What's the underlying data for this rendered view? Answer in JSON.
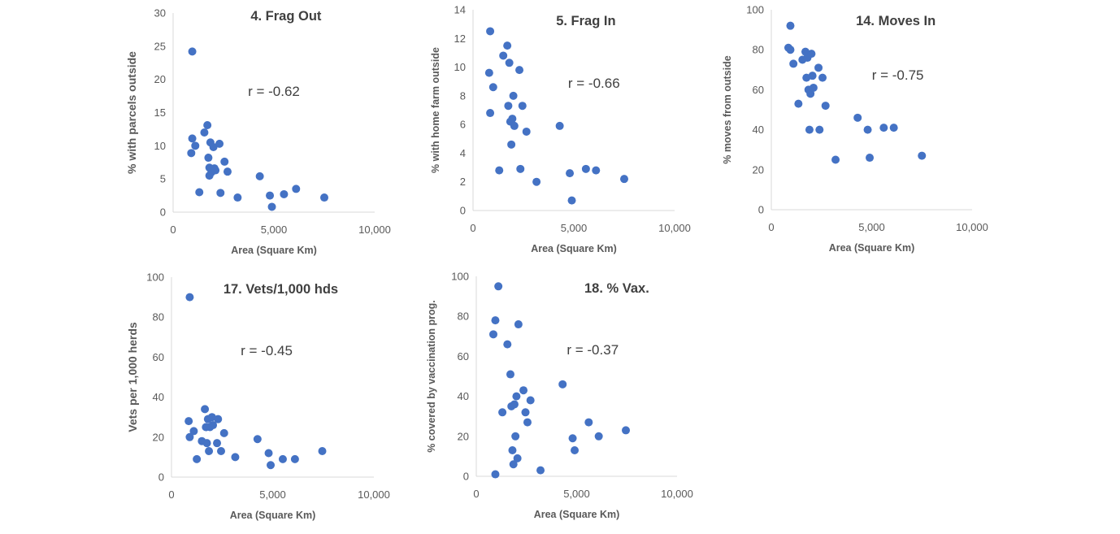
{
  "colors": {
    "point": "#4472c4",
    "axis": "#d9d9d9",
    "text": "#595959",
    "title": "#404040"
  },
  "chart_data": [
    {
      "type": "scatter",
      "title": "4. Frag Out",
      "xlabel": "Area (Square Km)",
      "ylabel": "% with parcels outside",
      "annotation": "r = -0.62",
      "xlim": [
        0,
        10000
      ],
      "ylim": [
        0,
        30
      ],
      "xticks": [
        "0",
        "5,000",
        "10,000"
      ],
      "yticks": [
        "0",
        "5",
        "10",
        "15",
        "20",
        "25",
        "30"
      ],
      "x": [
        950,
        900,
        950,
        1100,
        1300,
        1550,
        1700,
        1750,
        1800,
        1800,
        1850,
        1900,
        2000,
        2050,
        2100,
        2300,
        2350,
        2550,
        2700,
        3200,
        4300,
        4800,
        4900,
        5500,
        6100,
        7500
      ],
      "y": [
        24.2,
        8.9,
        11.1,
        10.0,
        3.0,
        12.0,
        13.1,
        8.2,
        6.7,
        5.5,
        10.5,
        6.0,
        9.8,
        6.6,
        6.3,
        10.3,
        2.9,
        7.6,
        6.1,
        2.2,
        5.4,
        2.5,
        0.8,
        2.7,
        3.5,
        2.2
      ]
    },
    {
      "type": "scatter",
      "title": "5. Frag In",
      "xlabel": "Area (Square Km)",
      "ylabel": "% with home farm outside",
      "annotation": "r = -0.66",
      "xlim": [
        0,
        10000
      ],
      "ylim": [
        0,
        14
      ],
      "xticks": [
        "0",
        "5,000",
        "10,000"
      ],
      "yticks": [
        "0",
        "2",
        "4",
        "6",
        "8",
        "10",
        "12",
        "14"
      ],
      "x": [
        850,
        800,
        850,
        1000,
        1300,
        1500,
        1700,
        1750,
        1800,
        1850,
        1900,
        1950,
        2000,
        2050,
        2300,
        2350,
        2450,
        2650,
        3150,
        4300,
        4800,
        4900,
        5600,
        6100,
        7500
      ],
      "y": [
        12.5,
        9.6,
        6.8,
        8.6,
        2.8,
        10.8,
        11.5,
        7.3,
        10.3,
        6.2,
        4.6,
        6.4,
        8.0,
        5.9,
        9.8,
        2.9,
        7.3,
        5.5,
        2.0,
        5.9,
        2.6,
        0.7,
        2.9,
        2.8,
        2.2
      ]
    },
    {
      "type": "scatter",
      "title": "14. Moves In",
      "xlabel": "Area (Square Km)",
      "ylabel": "% moves from outside",
      "annotation": "r = -0.75",
      "xlim": [
        0,
        10000
      ],
      "ylim": [
        0,
        100
      ],
      "xticks": [
        "0",
        "5,000",
        "10,000"
      ],
      "yticks": [
        "0",
        "20",
        "40",
        "60",
        "80",
        "100"
      ],
      "x": [
        950,
        850,
        950,
        1100,
        1350,
        1550,
        1700,
        1750,
        1800,
        1850,
        1900,
        1950,
        2000,
        2050,
        2100,
        2350,
        2400,
        2550,
        2700,
        3200,
        4300,
        4800,
        4900,
        5600,
        6100,
        7500
      ],
      "y": [
        92,
        81,
        80,
        73,
        53,
        75,
        79,
        66,
        76,
        60,
        40,
        58,
        78,
        67,
        61,
        71,
        40,
        66,
        52,
        25,
        46,
        40,
        26,
        41,
        41,
        27
      ]
    },
    {
      "type": "scatter",
      "title": "17. Vets/1,000 hds",
      "xlabel": "Area (Square Km)",
      "ylabel": "Vets per 1,000 herds",
      "annotation": "r = -0.45",
      "xlim": [
        0,
        10000
      ],
      "ylim": [
        0,
        100
      ],
      "xticks": [
        "0",
        "5,000",
        "10,000"
      ],
      "yticks": [
        "0",
        "20",
        "40",
        "60",
        "80",
        "100"
      ],
      "x": [
        900,
        850,
        900,
        1100,
        1250,
        1500,
        1650,
        1700,
        1750,
        1800,
        1850,
        1900,
        2000,
        2050,
        2250,
        2300,
        2450,
        2600,
        3150,
        4250,
        4800,
        4900,
        5500,
        6100,
        7450
      ],
      "y": [
        90,
        28,
        20,
        23,
        9,
        18,
        34,
        25,
        17,
        29,
        13,
        25,
        30,
        26,
        17,
        29,
        13,
        22,
        10,
        19,
        12,
        6,
        9,
        9,
        13
      ]
    },
    {
      "type": "scatter",
      "title": "18. % Vax.",
      "xlabel": "Area (Square Km)",
      "ylabel": "% covered by vaccination prog.",
      "annotation": "r = -0.37",
      "xlim": [
        0,
        10000
      ],
      "ylim": [
        0,
        100
      ],
      "xticks": [
        "0",
        "5,000",
        "10,000"
      ],
      "yticks": [
        "0",
        "20",
        "40",
        "60",
        "80",
        "100"
      ],
      "x": [
        1100,
        950,
        850,
        950,
        1300,
        1550,
        1700,
        1750,
        1800,
        1850,
        1900,
        1950,
        2000,
        2050,
        2100,
        2350,
        2450,
        2550,
        2700,
        3200,
        4300,
        4800,
        4900,
        5600,
        6100,
        7450
      ],
      "y": [
        95,
        78,
        71,
        1,
        32,
        66,
        51,
        35,
        13,
        6,
        36,
        20,
        40,
        9,
        76,
        43,
        32,
        27,
        38,
        3,
        46,
        19,
        13,
        27,
        20,
        23
      ]
    }
  ]
}
